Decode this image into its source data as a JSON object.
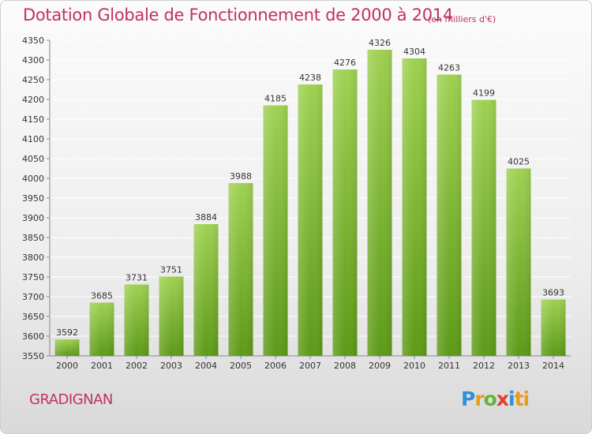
{
  "header": {
    "title": "Dotation Globale de Fonctionnement de 2000 à 2014",
    "unit": "(en milliers d'€)"
  },
  "footer": {
    "city": "GRADIGNAN",
    "logo_letters": [
      "P",
      "r",
      "o",
      "x",
      "i",
      "ti"
    ]
  },
  "colors": {
    "bar_top": "#9fd152",
    "bar_bottom": "#5d9a17",
    "title": "#c0306a",
    "grid": "#ffffff"
  },
  "chart_data": {
    "type": "bar",
    "categories": [
      "2000",
      "2001",
      "2002",
      "2003",
      "2004",
      "2005",
      "2006",
      "2007",
      "2008",
      "2009",
      "2010",
      "2011",
      "2012",
      "2013",
      "2014"
    ],
    "values": [
      3592,
      3685,
      3731,
      3751,
      3884,
      3988,
      4185,
      4238,
      4276,
      4326,
      4304,
      4263,
      4199,
      4025,
      3693
    ],
    "ylim": [
      3550,
      4350
    ],
    "ytick_step": 50,
    "grid": true,
    "title": "Dotation Globale de Fonctionnement de 2000 à 2014"
  }
}
